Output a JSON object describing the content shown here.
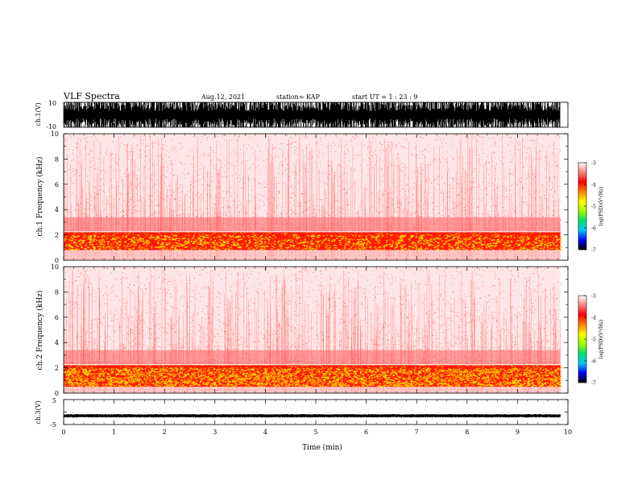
{
  "header": {
    "title": "VLF Spectra",
    "date": "Aug.12, 2021",
    "station": "station= KAP",
    "start": "start UT = 1 : 23 : 9"
  },
  "colorbar": {
    "label": "log(PSD)(V²/Hz)",
    "ticks": [
      "-3",
      "-4",
      "-5",
      "-6",
      "-7"
    ],
    "colors": [
      "#000000",
      "#0000ff",
      "#00c8ff",
      "#00e070",
      "#a0ff00",
      "#ffff00",
      "#ff8000",
      "#ff0000",
      "#ff8080",
      "#ffffff"
    ]
  },
  "chart_data": [
    {
      "type": "line",
      "panel": "ch1-waveform",
      "ylabel": "ch.1(V)",
      "ylim": [
        -10,
        10
      ],
      "y_ticks": [
        "10",
        "-10"
      ],
      "xlim": [
        0,
        10
      ],
      "x_extent": 9.85,
      "description_values": {
        "typical_min": -10,
        "typical_max": 10
      }
    },
    {
      "type": "heatmap",
      "panel": "ch1-spectrogram",
      "ylabel": "ch.1 Frequency (kHz)",
      "ylim": [
        0,
        10
      ],
      "y_ticks": [
        "0",
        "2",
        "4",
        "6",
        "8",
        "10"
      ],
      "xlim": [
        0,
        10
      ],
      "x_extent": 9.85,
      "band_kHz": [
        0.8,
        2.2
      ],
      "clim": [
        -7,
        -3
      ]
    },
    {
      "type": "heatmap",
      "panel": "ch2-spectrogram",
      "ylabel": "ch.2 Frequency (kHz)",
      "ylim": [
        0,
        10
      ],
      "y_ticks": [
        "0",
        "2",
        "4",
        "6",
        "8",
        "10"
      ],
      "xlim": [
        0,
        10
      ],
      "x_extent": 9.85,
      "band_kHz": [
        0.5,
        2.2
      ],
      "clim": [
        -7,
        -3
      ]
    },
    {
      "type": "line",
      "panel": "ch3-waveform",
      "ylabel": "ch.3(V)",
      "ylim": [
        -5,
        5
      ],
      "y_ticks": [
        "5",
        "-5"
      ],
      "xlim": [
        0,
        10
      ],
      "x_extent": 9.85,
      "level": -1.5,
      "xlabel": "Time (min)",
      "x_ticks": [
        "0",
        "1",
        "2",
        "3",
        "4",
        "5",
        "6",
        "7",
        "8",
        "9",
        "10"
      ]
    }
  ]
}
